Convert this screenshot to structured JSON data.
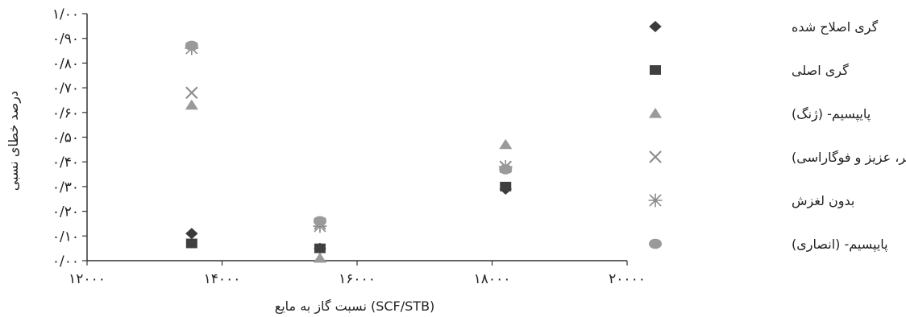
{
  "chart_data": {
    "type": "scatter",
    "title": "",
    "xlabel": "نسبت گاز به مایع (SCF/STB)",
    "ylabel": "درصد خطای نسبی",
    "xlim": [
      12000,
      20000
    ],
    "ylim": [
      0,
      1
    ],
    "x_ticks": [
      12000,
      14000,
      16000,
      18000,
      20000
    ],
    "x_tick_labels": [
      "۱۲۰۰۰",
      "۱۴۰۰۰",
      "۱۶۰۰۰",
      "۱۸۰۰۰",
      "۲۰۰۰۰"
    ],
    "y_ticks": [
      0,
      0.1,
      0.2,
      0.3,
      0.4,
      0.5,
      0.6,
      0.7,
      0.8,
      0.9,
      1.0
    ],
    "y_tick_labels": [
      "۰/۰۰",
      "۰/۱۰",
      "۰/۲۰",
      "۰/۳۰",
      "۰/۴۰",
      "۰/۵۰",
      "۰/۶۰",
      "۰/۷۰",
      "۰/۸۰",
      "۰/۹۰",
      "۱/۰۰"
    ],
    "grid": false,
    "legend_position": "right",
    "series": [
      {
        "name": "گری اصلاح شده",
        "marker": "diamond",
        "color": "#3a3a3a",
        "x": [
          13550,
          15450,
          18200
        ],
        "y": [
          0.11,
          0.05,
          0.29
        ]
      },
      {
        "name": "گری اصلی",
        "marker": "square",
        "color": "#404040",
        "x": [
          13550,
          15450,
          18200
        ],
        "y": [
          0.07,
          0.05,
          0.3
        ]
      },
      {
        "name": "پایپسیم- (ژنگ)",
        "marker": "triangle",
        "color": "#9a9a9a",
        "x": [
          13550,
          15450,
          18200
        ],
        "y": [
          0.63,
          0.01,
          0.47
        ]
      },
      {
        "name": "پایپسیم-(گوپر، عزیز و فوگاراسی)",
        "marker": "x",
        "color": "#8a8a8a",
        "x": [
          13550,
          15450,
          18200
        ],
        "y": [
          0.68,
          0.15,
          0.38
        ]
      },
      {
        "name": "بدون لغزش",
        "marker": "asterisk",
        "color": "#8a8a8a",
        "x": [
          13550,
          15450,
          18200
        ],
        "y": [
          0.86,
          0.14,
          0.38
        ]
      },
      {
        "name": "پایپسیم- (انصاری)",
        "marker": "circle",
        "color": "#9a9a9a",
        "x": [
          13550,
          15450,
          18200
        ],
        "y": [
          0.87,
          0.16,
          0.37
        ]
      }
    ]
  }
}
